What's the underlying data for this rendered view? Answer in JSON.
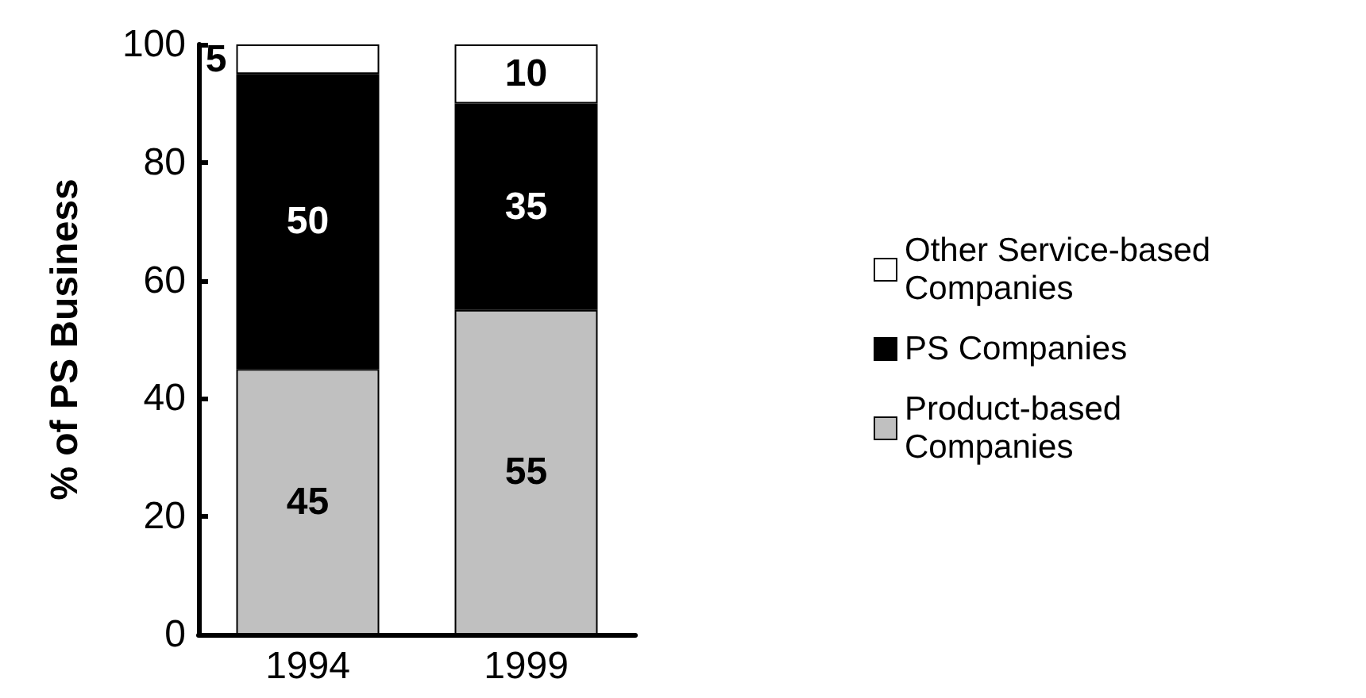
{
  "chart_data": {
    "type": "bar",
    "ylabel": "% of PS Business",
    "categories": [
      "1994",
      "1999"
    ],
    "stacked": true,
    "series": [
      {
        "name": "Product-based Companies",
        "color": "#c0c0c0",
        "values": [
          45,
          55
        ]
      },
      {
        "name": "PS Companies",
        "color": "#000000",
        "values": [
          50,
          35
        ]
      },
      {
        "name": "Other Service-based Companies",
        "color": "#ffffff",
        "values": [
          5,
          10
        ]
      }
    ],
    "ylim": [
      0,
      100
    ],
    "yticks": [
      0,
      20,
      40,
      60,
      80,
      100
    ],
    "data_labels": true,
    "grid": false,
    "legend": "right"
  }
}
